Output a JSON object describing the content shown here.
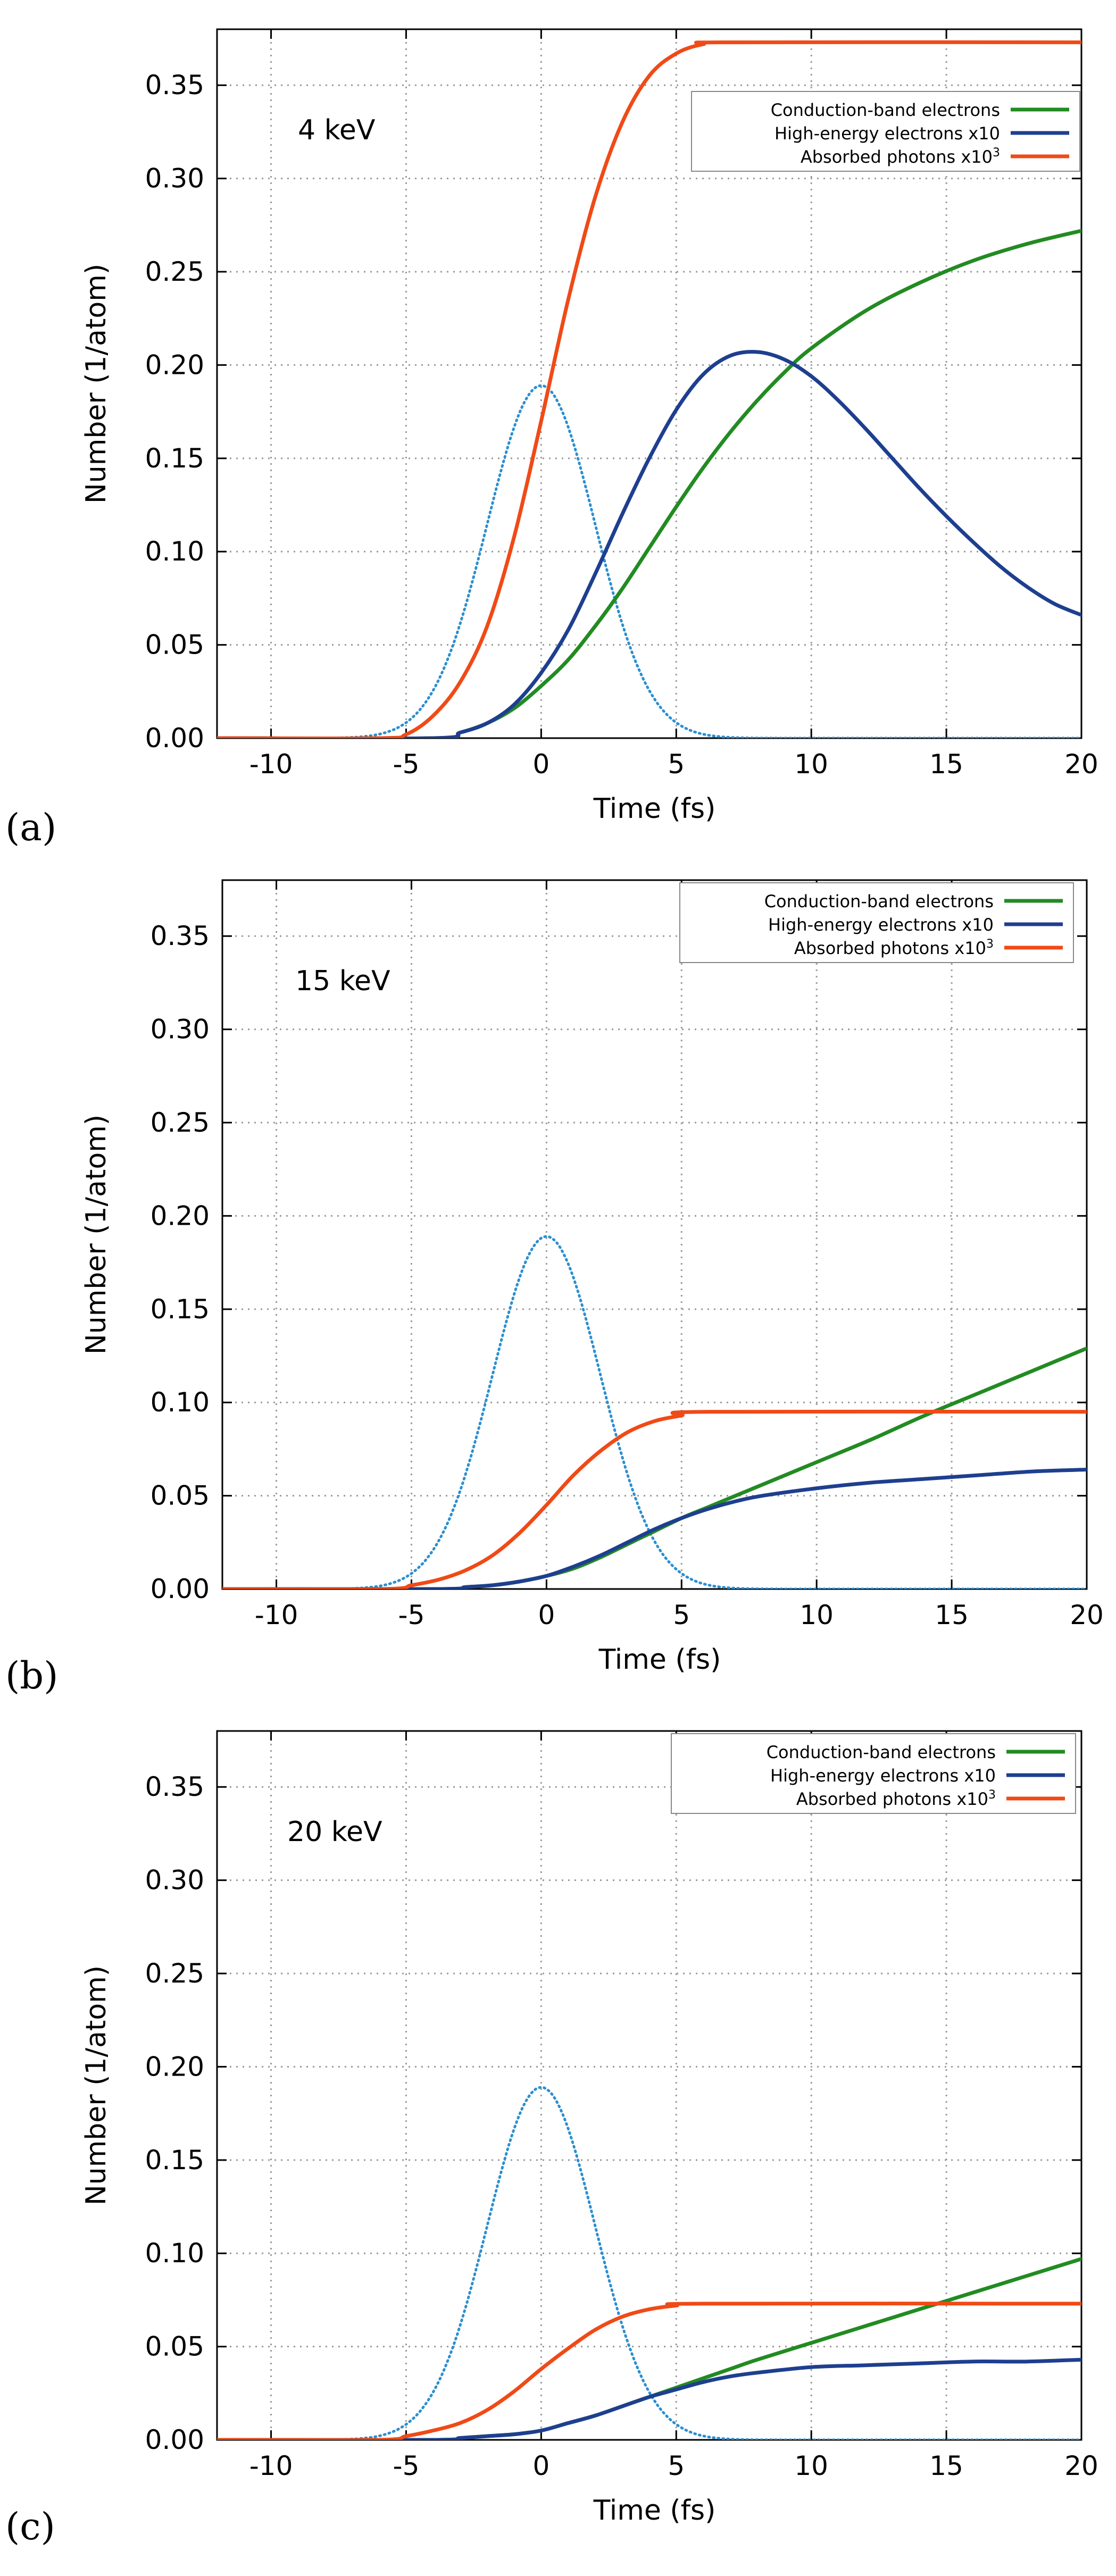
{
  "panels": [
    "(a)",
    "(b)",
    "(c)"
  ],
  "colors": {
    "conduction": "#228B22",
    "high_energy": "#1E3F8F",
    "absorbed": "#F04A17",
    "pulse": "#2B8FD0",
    "grid": "#9a9a9a"
  },
  "chart_data": [
    {
      "type": "line",
      "panel": "(a)",
      "annotation": "4 keV",
      "xlabel": "Time (fs)",
      "ylabel": "Number (1/atom)",
      "xlim": [
        -12,
        20
      ],
      "ylim": [
        0,
        0.38
      ],
      "xticks": [
        -10,
        -5,
        0,
        5,
        10,
        15,
        20
      ],
      "xtick_labels": [
        "-10",
        "-5",
        "0",
        "5",
        "10",
        "15",
        "20"
      ],
      "yticks": [
        0,
        0.05,
        0.1,
        0.15,
        0.2,
        0.25,
        0.3,
        0.35
      ],
      "ytick_labels": [
        "0.00",
        "0.05",
        "0.10",
        "0.15",
        "0.20",
        "0.25",
        "0.30",
        "0.35"
      ],
      "grid": true,
      "legend": "top-right",
      "series": [
        {
          "name": "Conduction-band electrons",
          "color_key": "conduction",
          "style": "solid",
          "x": [
            -12,
            -4,
            -3,
            -2,
            -1,
            0,
            1,
            2,
            3,
            4,
            5,
            6,
            7,
            8,
            9,
            10,
            12,
            14,
            16,
            18,
            20
          ],
          "y": [
            0,
            0.0,
            0.003,
            0.008,
            0.016,
            0.028,
            0.042,
            0.06,
            0.08,
            0.102,
            0.124,
            0.145,
            0.164,
            0.181,
            0.196,
            0.209,
            0.229,
            0.244,
            0.256,
            0.265,
            0.272
          ]
        },
        {
          "name": "High-energy electrons x10",
          "color_key": "high_energy",
          "style": "solid",
          "x": [
            -12,
            -4,
            -3,
            -2,
            -1,
            0,
            1,
            2,
            3,
            4,
            5,
            6,
            7,
            8,
            9,
            10,
            11,
            12,
            13,
            14,
            15,
            16,
            17,
            18,
            19,
            20
          ],
          "y": [
            0,
            0.0,
            0.003,
            0.008,
            0.018,
            0.035,
            0.058,
            0.088,
            0.12,
            0.15,
            0.176,
            0.195,
            0.205,
            0.207,
            0.203,
            0.194,
            0.181,
            0.166,
            0.15,
            0.134,
            0.119,
            0.105,
            0.092,
            0.081,
            0.072,
            0.066
          ]
        },
        {
          "name": "Absorbed photons x10³",
          "name_html": "Absorbed photons x10<tspan baseline-shift=\"super\" font-size=\"22\">3</tspan>",
          "color_key": "absorbed",
          "style": "solid",
          "x": [
            -12,
            -6,
            -5,
            -4,
            -3,
            -2,
            -1,
            0,
            1,
            2,
            3,
            4,
            5,
            6,
            7,
            20
          ],
          "y": [
            0,
            0.0,
            0.002,
            0.012,
            0.03,
            0.06,
            0.108,
            0.17,
            0.235,
            0.29,
            0.33,
            0.355,
            0.367,
            0.372,
            0.373,
            0.373
          ]
        },
        {
          "name": "",
          "color_key": "pulse",
          "style": "dotted",
          "gaussian": {
            "peak": 0.189,
            "center": 0,
            "sigma": 2.0
          }
        }
      ]
    },
    {
      "type": "line",
      "panel": "(b)",
      "annotation": "15 keV",
      "xlabel": "Time (fs)",
      "ylabel": "Number (1/atom)",
      "xlim": [
        -12,
        20
      ],
      "ylim": [
        0,
        0.38
      ],
      "xticks": [
        -10,
        -5,
        0,
        5,
        10,
        15,
        20
      ],
      "xtick_labels": [
        "-10",
        "-5",
        "0",
        "5",
        "10",
        "15",
        "20"
      ],
      "yticks": [
        0,
        0.05,
        0.1,
        0.15,
        0.2,
        0.25,
        0.3,
        0.35
      ],
      "ytick_labels": [
        "0.00",
        "0.05",
        "0.10",
        "0.15",
        "0.20",
        "0.25",
        "0.30",
        "0.35"
      ],
      "grid": true,
      "legend": "top-right",
      "series": [
        {
          "name": "Conduction-band electrons",
          "color_key": "conduction",
          "style": "solid",
          "x": [
            -12,
            -4,
            -3,
            -2,
            -1,
            0,
            1,
            2,
            3,
            4,
            5,
            6,
            7,
            8,
            10,
            12,
            14,
            16,
            18,
            20
          ],
          "y": [
            0,
            0.0,
            0.001,
            0.002,
            0.004,
            0.007,
            0.011,
            0.017,
            0.024,
            0.031,
            0.038,
            0.044,
            0.05,
            0.056,
            0.068,
            0.08,
            0.093,
            0.105,
            0.117,
            0.129
          ]
        },
        {
          "name": "High-energy electrons x10",
          "color_key": "high_energy",
          "style": "solid",
          "x": [
            -12,
            -4,
            -3,
            -2,
            -1,
            0,
            1,
            2,
            3,
            4,
            5,
            6,
            7,
            8,
            10,
            12,
            14,
            16,
            18,
            20
          ],
          "y": [
            0,
            0.0,
            0.001,
            0.002,
            0.004,
            0.007,
            0.012,
            0.018,
            0.025,
            0.032,
            0.038,
            0.043,
            0.047,
            0.05,
            0.054,
            0.057,
            0.059,
            0.061,
            0.063,
            0.064
          ]
        },
        {
          "name": "Absorbed photons x10³",
          "name_html": "Absorbed photons x10<tspan baseline-shift=\"super\" font-size=\"22\">3</tspan>",
          "color_key": "absorbed",
          "style": "solid",
          "x": [
            -12,
            -6,
            -5,
            -4,
            -3,
            -2,
            -1,
            0,
            1,
            2,
            3,
            4,
            5,
            6,
            20
          ],
          "y": [
            0,
            0.0,
            0.002,
            0.005,
            0.01,
            0.018,
            0.03,
            0.045,
            0.061,
            0.074,
            0.084,
            0.09,
            0.093,
            0.095,
            0.095
          ]
        },
        {
          "name": "",
          "color_key": "pulse",
          "style": "dotted",
          "gaussian": {
            "peak": 0.189,
            "center": 0,
            "sigma": 2.0
          }
        }
      ]
    },
    {
      "type": "line",
      "panel": "(c)",
      "annotation": "20 keV",
      "xlabel": "Time (fs)",
      "ylabel": "Number (1/atom)",
      "xlim": [
        -12,
        20
      ],
      "ylim": [
        0,
        0.38
      ],
      "xticks": [
        -10,
        -5,
        0,
        5,
        10,
        15,
        20
      ],
      "xtick_labels": [
        "-10",
        "-5",
        "0",
        "5",
        "10",
        "15",
        "20"
      ],
      "yticks": [
        0,
        0.05,
        0.1,
        0.15,
        0.2,
        0.25,
        0.3,
        0.35
      ],
      "ytick_labels": [
        "0.00",
        "0.05",
        "0.10",
        "0.15",
        "0.20",
        "0.25",
        "0.30",
        "0.35"
      ],
      "grid": true,
      "legend": "top-right",
      "series": [
        {
          "name": "Conduction-band electrons",
          "color_key": "conduction",
          "style": "solid",
          "x": [
            -12,
            -4,
            -3,
            -2,
            -1,
            0,
            1,
            2,
            3,
            4,
            5,
            6,
            7,
            8,
            10,
            12,
            14,
            16,
            18,
            20
          ],
          "y": [
            0,
            0.0,
            0.001,
            0.002,
            0.003,
            0.005,
            0.009,
            0.013,
            0.018,
            0.023,
            0.028,
            0.033,
            0.038,
            0.043,
            0.052,
            0.061,
            0.07,
            0.079,
            0.088,
            0.097
          ]
        },
        {
          "name": "High-energy electrons x10",
          "color_key": "high_energy",
          "style": "solid",
          "x": [
            -12,
            -4,
            -3,
            -2,
            -1,
            0,
            1,
            2,
            3,
            4,
            5,
            6,
            7,
            8,
            10,
            12,
            14,
            16,
            18,
            20
          ],
          "y": [
            0,
            0.0,
            0.001,
            0.002,
            0.003,
            0.005,
            0.009,
            0.013,
            0.018,
            0.023,
            0.027,
            0.031,
            0.034,
            0.036,
            0.039,
            0.04,
            0.041,
            0.042,
            0.042,
            0.043
          ]
        },
        {
          "name": "Absorbed photons x10³",
          "name_html": "Absorbed photons x10<tspan baseline-shift=\"super\" font-size=\"22\">3</tspan>",
          "color_key": "absorbed",
          "style": "solid",
          "x": [
            -12,
            -6,
            -5,
            -4,
            -3,
            -2,
            -1,
            0,
            1,
            2,
            3,
            4,
            5,
            6,
            20
          ],
          "y": [
            0,
            0.0,
            0.002,
            0.005,
            0.009,
            0.016,
            0.026,
            0.038,
            0.049,
            0.059,
            0.066,
            0.07,
            0.072,
            0.073,
            0.073
          ]
        },
        {
          "name": "",
          "color_key": "pulse",
          "style": "dotted",
          "gaussian": {
            "peak": 0.189,
            "center": 0,
            "sigma": 2.0
          }
        }
      ]
    }
  ]
}
